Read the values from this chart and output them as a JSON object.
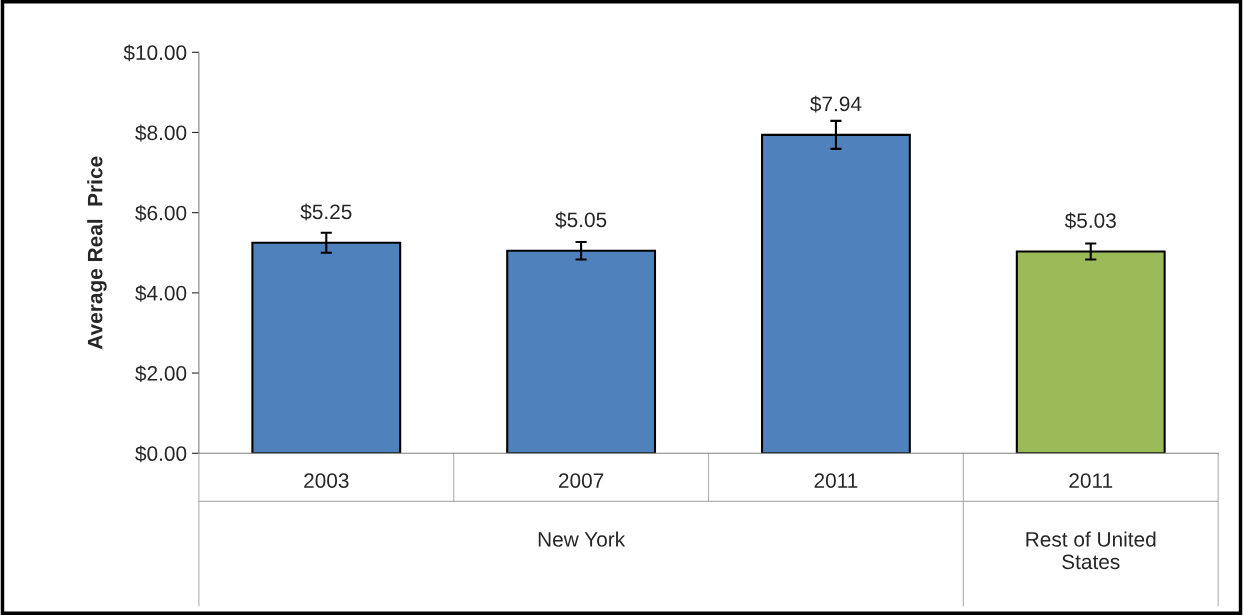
{
  "chart_data": {
    "type": "bar",
    "ylabel": "Average Real  Price",
    "categories": [
      "2003",
      "2007",
      "2011",
      "2011"
    ],
    "values": [
      5.25,
      5.05,
      7.94,
      5.03
    ],
    "colors": [
      "#4f81bd",
      "#4f81bd",
      "#4f81bd",
      "#9bbb59"
    ],
    "errors": [
      0.25,
      0.22,
      0.35,
      0.2
    ],
    "value_labels": [
      "$5.25",
      "$5.05",
      "$7.94",
      "$5.03"
    ],
    "ylim": [
      0,
      10
    ],
    "yticks": [
      {
        "value": 0,
        "label": "$0.00"
      },
      {
        "value": 2,
        "label": "$2.00"
      },
      {
        "value": 4,
        "label": "$4.00"
      },
      {
        "value": 6,
        "label": "$6.00"
      },
      {
        "value": 8,
        "label": "$8.00"
      },
      {
        "value": 10,
        "label": "$10.00"
      }
    ],
    "annotations": [
      "New York",
      "Rest of United\nStates"
    ],
    "grid": false
  }
}
